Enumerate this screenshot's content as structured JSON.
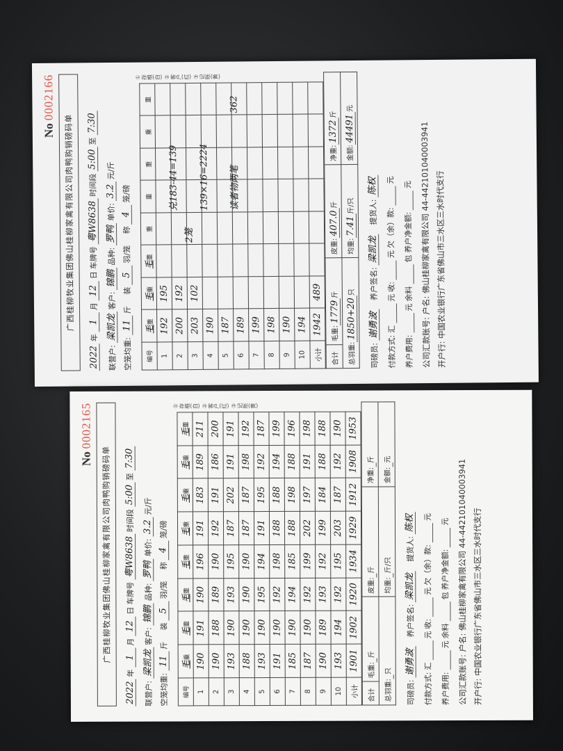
{
  "labels": {
    "no": "No",
    "year": "年",
    "month": "月",
    "day": "日",
    "plate": "车牌号",
    "period": "时间段",
    "to": "至",
    "partner": "联营户:",
    "customer": "客户:",
    "breed": "品种:",
    "price": "单价:",
    "price_unit": "元/斤",
    "cage_weight": "空笼均重:",
    "jin": "斤",
    "load": "装",
    "per_cage": "羽/笼",
    "weigh": "称",
    "per_scale": "笼/磅",
    "col_no": "编号",
    "subtotal": "小计",
    "total": "合计",
    "gross": "毛重:",
    "tare": "皮重:",
    "net": "净重:",
    "total_birds": "总羽重:",
    "zhi": "只",
    "avg": "均重:",
    "jin_per": "斤/只",
    "amount": "金额:",
    "yuan": "元",
    "weigher": "司磅员:",
    "farmer_sign": "养户签名:",
    "picker": "提货人:",
    "payment": "付款方式:",
    "remit": "汇",
    "receive": "收:",
    "owe": "欠（余）款:",
    "farmer_fee": "养户费用:",
    "feed_left": "余料",
    "bag": "包",
    "farmer_net": "养户净金额:",
    "account": "公司汇款账号: 户名: 佛山桂柳家禽有限公司 44-442101040003941",
    "bank": "开户行: 中国农业银行广东省佛山市三水区三水时代支行",
    "copies": "①存根(白) ②客户(红) ③记账(黄)"
  },
  "receipts": [
    {
      "title": "广西桂柳牧业集团佛山桂柳家禽有限公司肉鸭购销磅码单",
      "number": "0002166",
      "year": "2022",
      "month": "1",
      "day": "12",
      "plate": "粤W8638",
      "time_from": "5:00",
      "time_to": "7:30",
      "partner": "梁凯龙",
      "customer": "锦鹏",
      "breed": "罗鸭",
      "price": "3.2",
      "cage_weight": "11",
      "per_cage": "5",
      "per_scale": "4",
      "headers": [
        "毛",
        "毛",
        "毛",
        "",
        "",
        "",
        "",
        ""
      ],
      "rows": [
        [
          "192",
          "195",
          "",
          "",
          "",
          "",
          "",
          ""
        ],
        [
          "200",
          "192",
          "",
          "",
          "",
          "",
          "",
          ""
        ],
        [
          "203",
          "102",
          "",
          "",
          "",
          "",
          "",
          ""
        ],
        [
          "190",
          "",
          "",
          "",
          "",
          "",
          "",
          ""
        ],
        [
          "187",
          "",
          "",
          "",
          "",
          "",
          "",
          ""
        ],
        [
          "189",
          "",
          "",
          "",
          "",
          "",
          "",
          ""
        ],
        [
          "199",
          "",
          "",
          "",
          "",
          "",
          "",
          ""
        ],
        [
          "198",
          "",
          "",
          "",
          "",
          "",
          "",
          ""
        ],
        [
          "190",
          "",
          "",
          "",
          "",
          "",
          "",
          ""
        ],
        [
          "194",
          "",
          "",
          "",
          "",
          "",
          "",
          ""
        ]
      ],
      "subtotal": [
        "1942",
        "489",
        "",
        "",
        "",
        "",
        "",
        ""
      ],
      "notes": [
        "2笼",
        "兑183-44=139",
        "139×16=2224",
        "读者物两笔",
        "362"
      ],
      "gross": "1779",
      "tare": "407.0",
      "net": "1372",
      "total_birds": "1850+20",
      "avg": "7.41",
      "amount": "44491",
      "weigher": "谢勇波",
      "farmer_sign": "梁凯龙",
      "picker": "陈权"
    },
    {
      "title": "广西桂柳牧业集团佛山桂柳家禽有限公司肉鸭购销磅码单",
      "number": "0002165",
      "year": "2022",
      "month": "1",
      "day": "12",
      "plate": "粤W8638",
      "time_from": "5:00",
      "time_to": "7:30",
      "partner": "梁凯龙",
      "customer": "锦鹏",
      "breed": "罗鸭",
      "price": "3.2",
      "cage_weight": "11",
      "per_cage": "5",
      "per_scale": "4",
      "headers": [
        "毛",
        "毛",
        "毛",
        "毛",
        "毛",
        "毛",
        "毛",
        "毛"
      ],
      "rows": [
        [
          "190",
          "191",
          "190",
          "196",
          "191",
          "183",
          "189",
          "211"
        ],
        [
          "190",
          "188",
          "189",
          "190",
          "192",
          "191",
          "186",
          "200"
        ],
        [
          "193",
          "190",
          "193",
          "195",
          "187",
          "202",
          "191",
          "191"
        ],
        [
          "188",
          "190",
          "190",
          "190",
          "187",
          "187",
          "198",
          "192"
        ],
        [
          "193",
          "190",
          "195",
          "194",
          "191",
          "195",
          "192",
          "187"
        ],
        [
          "191",
          "190",
          "192",
          "198",
          "188",
          "188",
          "194",
          "199"
        ],
        [
          "185",
          "190",
          "194",
          "185",
          "188",
          "198",
          "188",
          "196"
        ],
        [
          "187",
          "190",
          "192",
          "199",
          "202",
          "197",
          "191",
          "198"
        ],
        [
          "190",
          "189",
          "193",
          "192",
          "199",
          "184",
          "188",
          "188"
        ],
        [
          "193",
          "194",
          "192",
          "195",
          "203",
          "187",
          "192",
          "190"
        ]
      ],
      "subtotal": [
        "1901",
        "1902",
        "1920",
        "1934",
        "1929",
        "1912",
        "1908",
        "1953"
      ],
      "notes": [],
      "gross": "",
      "tare": "",
      "net": "",
      "total_birds": "",
      "avg": "",
      "amount": "",
      "weigher": "谢勇波",
      "farmer_sign": "梁凯龙",
      "picker": "陈权"
    }
  ]
}
